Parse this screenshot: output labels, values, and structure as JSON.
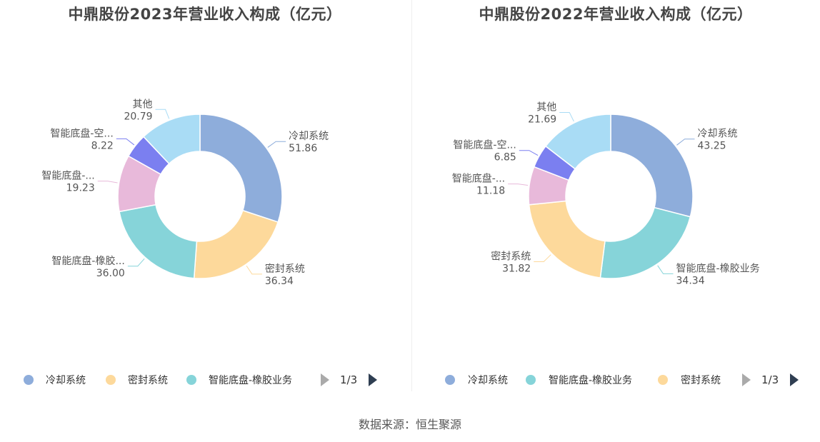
{
  "charts": [
    {
      "title": "中鼎股份2023年营业收入构成（亿元）",
      "legend": [
        "冷却系统",
        "密封系统",
        "智能底盘-橡胶业务"
      ],
      "legend_colors": [
        "#8eaddb",
        "#fdd99b",
        "#86d4d9"
      ],
      "pager": "1/3",
      "slices": [
        {
          "label": "冷却系统",
          "value_text": "51.86"
        },
        {
          "label": "密封系统",
          "value_text": "36.34"
        },
        {
          "label": "智能底盘-橡胶...",
          "value_text": "36.00"
        },
        {
          "label": "智能底盘-...",
          "value_text": "19.23"
        },
        {
          "label": "智能底盘-空...",
          "value_text": "8.22"
        },
        {
          "label": "其他",
          "value_text": "20.79"
        }
      ]
    },
    {
      "title": "中鼎股份2022年营业收入构成（亿元）",
      "legend": [
        "冷却系统",
        "智能底盘-橡胶业务",
        "密封系统"
      ],
      "legend_colors": [
        "#8eaddb",
        "#86d4d9",
        "#fdd99b"
      ],
      "pager": "1/3",
      "slices": [
        {
          "label": "冷却系统",
          "value_text": "43.25"
        },
        {
          "label": "智能底盘-橡胶业务",
          "value_text": "34.34"
        },
        {
          "label": "密封系统",
          "value_text": "31.82"
        },
        {
          "label": "智能底盘-...",
          "value_text": "11.18"
        },
        {
          "label": "智能底盘-空...",
          "value_text": "6.85"
        },
        {
          "label": "其他",
          "value_text": "21.69"
        }
      ]
    }
  ],
  "source": "数据来源：恒生聚源",
  "chart_data": [
    {
      "type": "pie",
      "title": "中鼎股份2023年营业收入构成（亿元）",
      "donut": true,
      "categories": [
        "冷却系统",
        "密封系统",
        "智能底盘-橡胶业务",
        "智能底盘-...",
        "智能底盘-空...",
        "其他"
      ],
      "values": [
        51.86,
        36.34,
        36.0,
        19.23,
        8.22,
        20.79
      ],
      "colors": [
        "#8eaddb",
        "#fdd99b",
        "#86d4d9",
        "#e8b9da",
        "#7b7ff0",
        "#a9dcf5"
      ],
      "legend_position": "bottom"
    },
    {
      "type": "pie",
      "title": "中鼎股份2022年营业收入构成（亿元）",
      "donut": true,
      "categories": [
        "冷却系统",
        "智能底盘-橡胶业务",
        "密封系统",
        "智能底盘-...",
        "智能底盘-空...",
        "其他"
      ],
      "values": [
        43.25,
        34.34,
        31.82,
        11.18,
        6.85,
        21.69
      ],
      "colors": [
        "#8eaddb",
        "#86d4d9",
        "#fdd99b",
        "#e8b9da",
        "#7b7ff0",
        "#a9dcf5"
      ],
      "legend_position": "bottom"
    }
  ]
}
